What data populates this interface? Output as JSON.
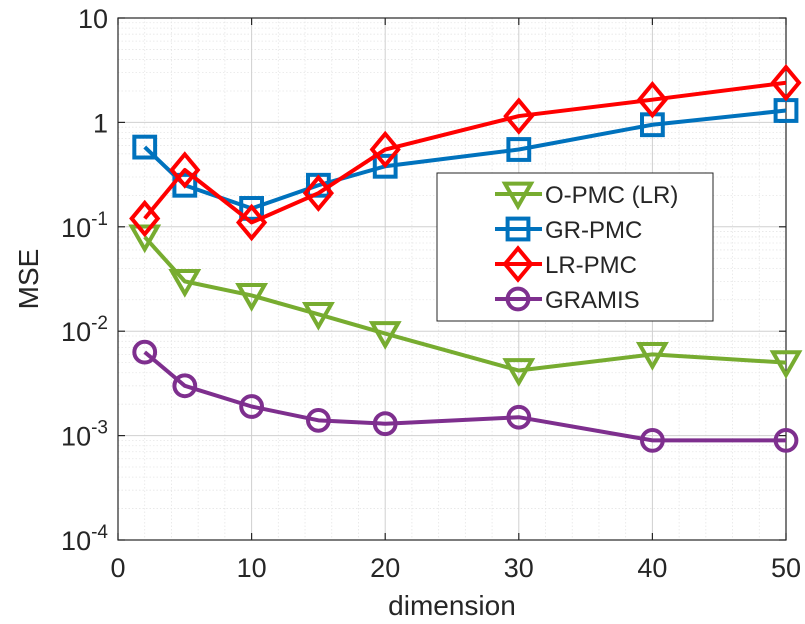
{
  "chart_data": {
    "type": "line",
    "xlabel": "dimension",
    "ylabel": "MSE",
    "xlim": [
      0,
      50
    ],
    "ylim": [
      0.0001,
      10
    ],
    "yscale": "log",
    "grid": true,
    "minor_grid": true,
    "legend_position": "right",
    "x_ticks": [
      0,
      10,
      20,
      30,
      40,
      50
    ],
    "x_tick_labels": [
      "0",
      "10",
      "20",
      "30",
      "40",
      "50"
    ],
    "y_tick_labels": [
      {
        "base": "10",
        "exp": "-4"
      },
      {
        "base": "10",
        "exp": "-3"
      },
      {
        "base": "10",
        "exp": "-2"
      },
      {
        "base": "10",
        "exp": "-1"
      },
      {
        "base": "1",
        "exp": ""
      },
      {
        "base": "10",
        "exp": ""
      }
    ],
    "series": [
      {
        "name": "O-PMC (LR)",
        "color": "#77AC30",
        "marker": "triangle-down",
        "x": [
          2,
          5,
          10,
          15,
          20,
          30,
          40,
          50
        ],
        "y": [
          0.08,
          0.03,
          0.022,
          0.0145,
          0.0095,
          0.0042,
          0.006,
          0.005
        ]
      },
      {
        "name": "GR-PMC",
        "color": "#0072BD",
        "marker": "square",
        "x": [
          2,
          5,
          10,
          15,
          20,
          30,
          40,
          50
        ],
        "y": [
          0.58,
          0.25,
          0.15,
          0.25,
          0.38,
          0.55,
          0.95,
          1.3
        ]
      },
      {
        "name": "LR-PMC",
        "color": "#FF0000",
        "marker": "diamond",
        "x": [
          2,
          5,
          10,
          15,
          20,
          30,
          40,
          50
        ],
        "y": [
          0.12,
          0.35,
          0.11,
          0.21,
          0.55,
          1.15,
          1.65,
          2.4
        ]
      },
      {
        "name": "GRAMIS",
        "color": "#7E2F8E",
        "marker": "circle",
        "x": [
          2,
          5,
          10,
          15,
          20,
          30,
          40,
          50
        ],
        "y": [
          0.0063,
          0.003,
          0.0019,
          0.0014,
          0.0013,
          0.0015,
          0.0009,
          0.0009
        ]
      }
    ]
  }
}
